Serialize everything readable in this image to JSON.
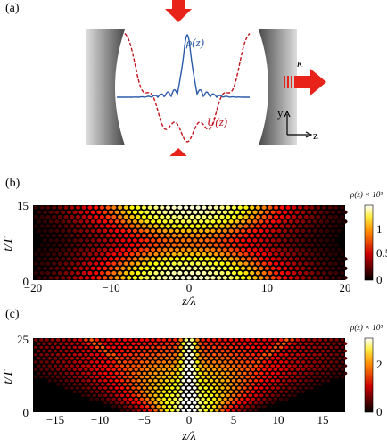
{
  "panels": {
    "a": {
      "label": "(a)",
      "rho_label": "ρ(z)",
      "u_label": "U(z)",
      "kappa": "κ",
      "axis_y": "y",
      "axis_z": "z",
      "colors": {
        "rho": "#2a5aa8",
        "u": "#c0141e",
        "arrow": "#e8231a"
      }
    },
    "b": {
      "label": "(b)",
      "ylabel": "t/T",
      "xlabel": "z/λ",
      "xticks": [
        "−20",
        "−10",
        "0",
        "10",
        "20"
      ],
      "yticks": [
        "0",
        "15"
      ],
      "colorbar_title": "ρ(z) × 10³",
      "colorbar_ticks": [
        "0",
        "0.5",
        "1"
      ]
    },
    "c": {
      "label": "(c)",
      "ylabel": "t/T",
      "xlabel": "z/λ",
      "xticks": [
        "−15",
        "−10",
        "−5",
        "0",
        "5",
        "10",
        "15"
      ],
      "yticks": [
        "0",
        "25"
      ],
      "colorbar_title": "ρ(z) × 10³",
      "colorbar_ticks": [
        "0",
        "2"
      ]
    }
  },
  "chart_data": [
    {
      "type": "heatmap",
      "panel": "b",
      "xlabel": "z/λ",
      "ylabel": "t/T",
      "xlim": [
        -20,
        20
      ],
      "ylim": [
        0,
        15
      ],
      "colorbar_label": "ρ(z) × 10³",
      "colorbar_range": [
        0,
        1.6
      ],
      "colormap": "hot"
    },
    {
      "type": "heatmap",
      "panel": "c",
      "xlabel": "z/λ",
      "ylabel": "t/T",
      "xlim": [
        -17,
        17
      ],
      "ylim": [
        0,
        25
      ],
      "colorbar_label": "ρ(z) × 10³",
      "colorbar_range": [
        0,
        3
      ],
      "colormap": "hot"
    }
  ]
}
